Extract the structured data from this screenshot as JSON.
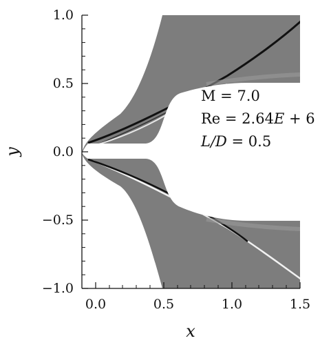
{
  "figure": {
    "annotations": {
      "mach": "M = 7.0",
      "reynolds_prefix": "Re = 2.64",
      "reynolds_e": "E",
      "reynolds_suffix": " + 6",
      "ld_var": "L/D",
      "ld_value": " = 0.5"
    },
    "axes": {
      "xlabel": "x",
      "ylabel": "y",
      "x_ticks": [
        "0.0",
        "0.5",
        "1.0",
        "1.5"
      ],
      "y_ticks": [
        "1.0",
        "0.5",
        "0.0",
        "−0.5",
        "−1.0"
      ],
      "xlim": [
        -0.1,
        1.5
      ],
      "ylim": [
        -1.0,
        1.0
      ]
    },
    "colors": {
      "field_gray": "#7d7d7d",
      "shock_dark": "#111111",
      "shock_light": "#f2f2f2",
      "axis": "#111111"
    }
  }
}
